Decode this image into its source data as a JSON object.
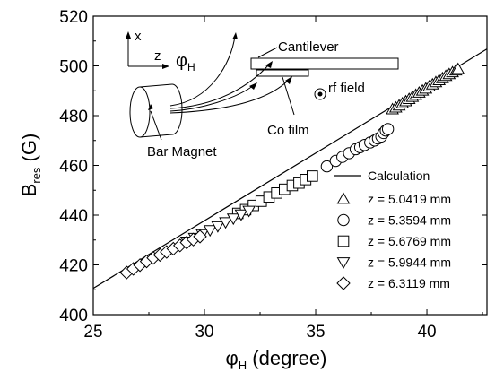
{
  "chart_data": {
    "type": "scatter",
    "title": "",
    "xlabel": "φH (degree)",
    "ylabel": "Bres (G)",
    "xlim": [
      25,
      42.7
    ],
    "ylim": [
      400,
      520
    ],
    "xticks": [
      25,
      30,
      35,
      40
    ],
    "yticks": [
      400,
      420,
      440,
      460,
      480,
      500,
      520
    ],
    "grid": false,
    "legend_position": "lower-right",
    "line": {
      "name": "Calculation",
      "style": "solid",
      "x": [
        25,
        42.7
      ],
      "y": [
        410.6,
        506.8
      ]
    },
    "series": [
      {
        "name": "z = 5.0419 mm",
        "marker": "triangle-up",
        "x": [
          38.45,
          38.6,
          38.75,
          38.9,
          39.05,
          39.2,
          39.35,
          39.5,
          39.65,
          39.8,
          39.95,
          40.1,
          40.25,
          40.4,
          40.55,
          40.7,
          40.85,
          41.0,
          41.15,
          41.3,
          41.4
        ],
        "y": [
          482.5,
          483.2,
          484.0,
          484.9,
          485.7,
          486.6,
          487.5,
          488.3,
          489.2,
          490.0,
          490.8,
          491.7,
          492.5,
          493.4,
          494.2,
          495.0,
          495.9,
          496.6,
          497.4,
          498.1,
          498.7
        ]
      },
      {
        "name": "z = 5.3594 mm",
        "marker": "circle",
        "x": [
          35.5,
          35.9,
          36.2,
          36.5,
          36.8,
          37.0,
          37.2,
          37.45,
          37.65,
          37.8,
          37.95,
          38.05,
          38.15,
          38.25
        ],
        "y": [
          459.6,
          461.8,
          463.4,
          464.9,
          466.5,
          467.3,
          468.2,
          469.2,
          470.0,
          470.8,
          471.6,
          473.0,
          474.0,
          474.6
        ]
      },
      {
        "name": "z = 5.6769 mm",
        "marker": "square",
        "x": [
          31.5,
          31.85,
          32.2,
          32.55,
          32.9,
          33.25,
          33.6,
          33.95,
          34.25,
          34.55,
          34.85
        ],
        "y": [
          440.7,
          442.2,
          443.9,
          445.6,
          447.3,
          448.9,
          450.4,
          451.9,
          452.9,
          454.3,
          455.7
        ]
      },
      {
        "name": "z = 5.9944 mm",
        "marker": "triangle-down",
        "x": [
          29.2,
          29.55,
          29.9,
          30.25,
          30.6,
          30.95,
          31.3,
          31.65,
          32.0
        ],
        "y": [
          429.4,
          430.9,
          432.4,
          434.0,
          435.6,
          437.2,
          438.7,
          440.3,
          441.8
        ]
      },
      {
        "name": "z = 6.3119 mm",
        "marker": "diamond",
        "x": [
          26.5,
          26.8,
          27.1,
          27.4,
          27.7,
          28.0,
          28.3,
          28.6,
          28.9,
          29.2,
          29.5,
          29.8
        ],
        "y": [
          416.9,
          418.4,
          419.9,
          421.4,
          422.8,
          424.0,
          425.2,
          426.5,
          427.8,
          429.0,
          430.2,
          431.4
        ]
      }
    ],
    "inset": {
      "axis_x": "x",
      "axis_z": "z",
      "angle_label": "φH",
      "cantilever": "Cantilever",
      "rf_field": "rf field",
      "co_film": "Co film",
      "magnet": "Bar Magnet"
    }
  }
}
